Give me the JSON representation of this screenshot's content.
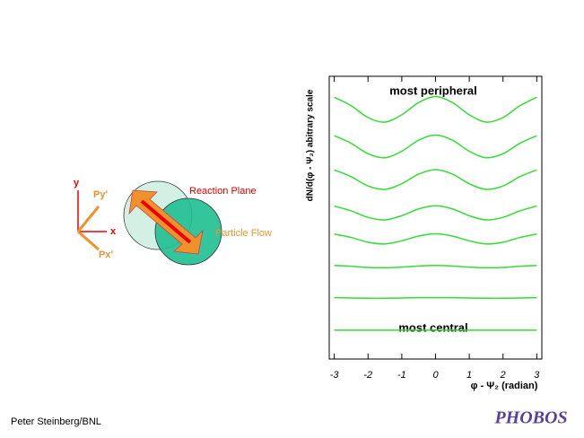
{
  "chart_data": {
    "type": "line",
    "y_label": "dN/d(φ - Ψ₂) abitrary scale",
    "x_label": "φ - Ψ₂ (radian)",
    "annotations": [
      "most peripheral",
      "most central"
    ],
    "x": [
      -3,
      -2.5,
      -2,
      -1.5,
      -1,
      -0.5,
      0,
      0.5,
      1,
      1.5,
      2,
      2.5,
      3
    ],
    "xlim": [
      -3.15,
      3.15
    ],
    "xticks": [
      -3,
      -2,
      -1,
      0,
      1,
      2,
      3
    ],
    "ylim": [
      0,
      10
    ],
    "color": "#33dd33",
    "series": [
      {
        "values": [
          9.26,
          8.96,
          8.54,
          8.38,
          8.64,
          9.07,
          9.28,
          9.07,
          8.64,
          8.38,
          8.54,
          8.96,
          9.26
        ]
      },
      {
        "values": [
          7.9,
          7.63,
          7.26,
          7.12,
          7.35,
          7.74,
          7.92,
          7.74,
          7.35,
          7.12,
          7.26,
          7.63,
          7.9
        ]
      },
      {
        "values": [
          6.69,
          6.45,
          6.12,
          6.0,
          6.2,
          6.54,
          6.7,
          6.54,
          6.2,
          6.0,
          6.12,
          6.45,
          6.69
        ]
      },
      {
        "values": [
          5.41,
          5.24,
          5.01,
          4.92,
          5.07,
          5.31,
          5.42,
          5.31,
          5.07,
          4.92,
          5.01,
          5.24,
          5.41
        ]
      },
      {
        "values": [
          4.42,
          4.3,
          4.13,
          4.07,
          4.18,
          4.35,
          4.43,
          4.35,
          4.18,
          4.07,
          4.13,
          4.3,
          4.42
        ]
      },
      {
        "values": [
          3.31,
          3.28,
          3.24,
          3.23,
          3.25,
          3.29,
          3.31,
          3.29,
          3.25,
          3.23,
          3.24,
          3.28,
          3.31
        ]
      },
      {
        "values": [
          2.17,
          2.16,
          2.15,
          2.15,
          2.16,
          2.17,
          2.17,
          2.17,
          2.16,
          2.15,
          2.15,
          2.16,
          2.17
        ]
      },
      {
        "values": [
          1.02,
          1.02,
          1.02,
          1.02,
          1.02,
          1.02,
          1.02,
          1.02,
          1.02,
          1.02,
          1.02,
          1.02,
          1.02
        ]
      }
    ]
  },
  "diagram": {
    "axis_y": "y",
    "axis_x": "x",
    "p_y": "Py'",
    "p_x": "Px'",
    "reaction_plane": "Reaction Plane",
    "particle_flow": "Particle Flow"
  },
  "footer": {
    "author": "Peter Steinberg/BNL",
    "logo": "PHOBOS"
  }
}
